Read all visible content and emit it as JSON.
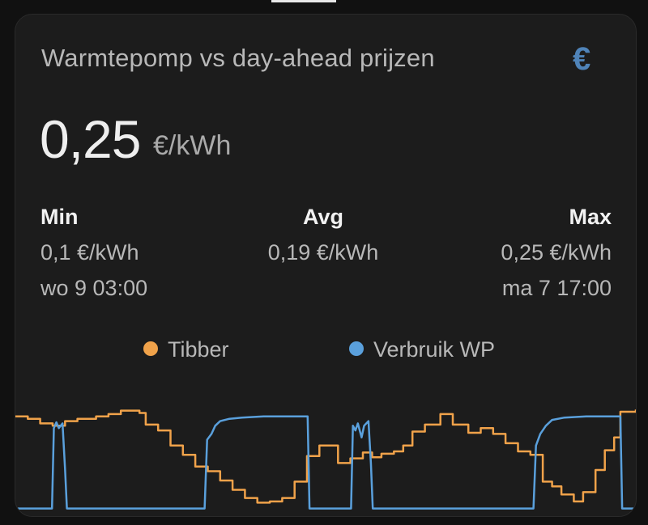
{
  "card": {
    "title": "Warmtepomp vs day-ahead prijzen",
    "icon": "euro-icon",
    "icon_glyph": "€",
    "icon_color": "#4f83b8",
    "current_value": "0,25",
    "current_unit": "€/kWh"
  },
  "stats": {
    "min": {
      "label": "Min",
      "value": "0,1 €/kWh",
      "time": "wo 9 03:00"
    },
    "avg": {
      "label": "Avg",
      "value": "0,19 €/kWh"
    },
    "max": {
      "label": "Max",
      "value": "0,25 €/kWh",
      "time": "ma 7 17:00"
    }
  },
  "legend": [
    {
      "name": "Tibber",
      "color": "#f0a24a"
    },
    {
      "name": "Verbruik WP",
      "color": "#5aa0dc"
    }
  ],
  "chart_data": {
    "type": "line",
    "x_range": [
      0,
      100
    ],
    "y_range": [
      0,
      1
    ],
    "series": [
      {
        "name": "Tibber",
        "color": "#f0a24a",
        "step": true,
        "points": [
          [
            0,
            0.8
          ],
          [
            2,
            0.78
          ],
          [
            4,
            0.74
          ],
          [
            6,
            0.72
          ],
          [
            8,
            0.76
          ],
          [
            10,
            0.78
          ],
          [
            13,
            0.8
          ],
          [
            15,
            0.82
          ],
          [
            17,
            0.85
          ],
          [
            20,
            0.83
          ],
          [
            21,
            0.73
          ],
          [
            23,
            0.68
          ],
          [
            25,
            0.55
          ],
          [
            27,
            0.47
          ],
          [
            29,
            0.37
          ],
          [
            31,
            0.33
          ],
          [
            33,
            0.25
          ],
          [
            35,
            0.17
          ],
          [
            37,
            0.1
          ],
          [
            39,
            0.06
          ],
          [
            41,
            0.07
          ],
          [
            43,
            0.1
          ],
          [
            45,
            0.24
          ],
          [
            47,
            0.46
          ],
          [
            49,
            0.55
          ],
          [
            52,
            0.4
          ],
          [
            54,
            0.44
          ],
          [
            56,
            0.49
          ],
          [
            57.5,
            0.45
          ],
          [
            59,
            0.48
          ],
          [
            61,
            0.5
          ],
          [
            62.5,
            0.55
          ],
          [
            64,
            0.67
          ],
          [
            66,
            0.73
          ],
          [
            68.5,
            0.82
          ],
          [
            70.5,
            0.73
          ],
          [
            73,
            0.66
          ],
          [
            75,
            0.7
          ],
          [
            77,
            0.65
          ],
          [
            79,
            0.57
          ],
          [
            81,
            0.5
          ],
          [
            83,
            0.47
          ],
          [
            85,
            0.24
          ],
          [
            86.5,
            0.2
          ],
          [
            88,
            0.13
          ],
          [
            90,
            0.07
          ],
          [
            91.5,
            0.15
          ],
          [
            93.5,
            0.34
          ],
          [
            95,
            0.51
          ],
          [
            96.5,
            0.62
          ],
          [
            97.5,
            0.84
          ],
          [
            100,
            0.86
          ]
        ]
      },
      {
        "name": "Verbruik WP",
        "color": "#5aa0dc",
        "step": false,
        "points": [
          [
            0,
            0.01
          ],
          [
            5.9,
            0.01
          ],
          [
            6.2,
            0.7
          ],
          [
            6.6,
            0.75
          ],
          [
            7.0,
            0.7
          ],
          [
            7.6,
            0.74
          ],
          [
            8.0,
            0.35
          ],
          [
            8.3,
            0.01
          ],
          [
            30.5,
            0.01
          ],
          [
            30.9,
            0.6
          ],
          [
            31.6,
            0.65
          ],
          [
            32.2,
            0.72
          ],
          [
            33.0,
            0.76
          ],
          [
            34.5,
            0.78
          ],
          [
            36.5,
            0.79
          ],
          [
            40,
            0.8
          ],
          [
            46,
            0.8
          ],
          [
            47.1,
            0.8
          ],
          [
            47.4,
            0.01
          ],
          [
            54.1,
            0.01
          ],
          [
            54.4,
            0.72
          ],
          [
            54.8,
            0.68
          ],
          [
            55.2,
            0.74
          ],
          [
            55.8,
            0.62
          ],
          [
            56.2,
            0.72
          ],
          [
            56.9,
            0.76
          ],
          [
            57.3,
            0.4
          ],
          [
            57.6,
            0.01
          ],
          [
            83.5,
            0.01
          ],
          [
            83.9,
            0.55
          ],
          [
            84.6,
            0.65
          ],
          [
            85.5,
            0.72
          ],
          [
            86.5,
            0.77
          ],
          [
            88.5,
            0.79
          ],
          [
            92,
            0.8
          ],
          [
            97.5,
            0.8
          ],
          [
            97.8,
            0.01
          ],
          [
            100,
            0.01
          ]
        ]
      }
    ]
  }
}
